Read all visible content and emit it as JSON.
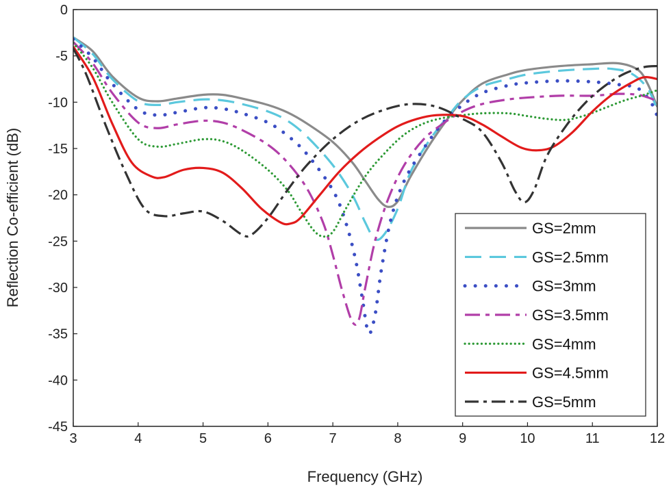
{
  "chart_data": {
    "type": "line",
    "title": "",
    "xlabel": "Frequency (GHz)",
    "ylabel": "Reflection Co-efficient (dB)",
    "xlim": [
      3,
      12
    ],
    "ylim": [
      -45,
      0
    ],
    "xticks": [
      3,
      4,
      5,
      6,
      7,
      8,
      9,
      10,
      11,
      12
    ],
    "yticks": [
      0,
      -5,
      -10,
      -15,
      -20,
      -25,
      -30,
      -35,
      -40,
      -45
    ],
    "grid": false,
    "legend_position": "bottom-right",
    "series": [
      {
        "name": "GS=2mm",
        "color": "#8a8a8a",
        "dash": "solid",
        "points": [
          [
            3,
            -3
          ],
          [
            3.3,
            -4.5
          ],
          [
            3.6,
            -7.2
          ],
          [
            4,
            -9.5
          ],
          [
            4.3,
            -9.9
          ],
          [
            4.6,
            -9.6
          ],
          [
            5,
            -9.2
          ],
          [
            5.3,
            -9.2
          ],
          [
            5.6,
            -9.6
          ],
          [
            6,
            -10.3
          ],
          [
            6.3,
            -11.1
          ],
          [
            6.6,
            -12.3
          ],
          [
            7,
            -14.3
          ],
          [
            7.3,
            -16.5
          ],
          [
            7.5,
            -18.5
          ],
          [
            7.7,
            -20.5
          ],
          [
            7.85,
            -21.3
          ],
          [
            8,
            -20.7
          ],
          [
            8.2,
            -18
          ],
          [
            8.5,
            -14.5
          ],
          [
            8.8,
            -11.5
          ],
          [
            9,
            -9.8
          ],
          [
            9.3,
            -8
          ],
          [
            9.7,
            -7
          ],
          [
            10,
            -6.5
          ],
          [
            10.5,
            -6.1
          ],
          [
            11,
            -5.9
          ],
          [
            11.4,
            -5.8
          ],
          [
            11.7,
            -6.5
          ],
          [
            11.85,
            -8
          ],
          [
            12,
            -10.5
          ]
        ]
      },
      {
        "name": "GS=2.5mm",
        "color": "#5bc8dd",
        "dash": "long-dash",
        "points": [
          [
            3,
            -3
          ],
          [
            3.3,
            -4.8
          ],
          [
            3.6,
            -7.5
          ],
          [
            4,
            -9.9
          ],
          [
            4.3,
            -10.3
          ],
          [
            4.6,
            -10
          ],
          [
            5,
            -9.7
          ],
          [
            5.3,
            -9.8
          ],
          [
            5.6,
            -10.2
          ],
          [
            6,
            -11
          ],
          [
            6.3,
            -12
          ],
          [
            6.6,
            -13.7
          ],
          [
            7,
            -16.8
          ],
          [
            7.3,
            -20
          ],
          [
            7.5,
            -23
          ],
          [
            7.65,
            -24.8
          ],
          [
            7.8,
            -24.2
          ],
          [
            8,
            -21.5
          ],
          [
            8.2,
            -17.5
          ],
          [
            8.5,
            -14
          ],
          [
            8.8,
            -11.3
          ],
          [
            9,
            -9.7
          ],
          [
            9.3,
            -8.3
          ],
          [
            9.7,
            -7.5
          ],
          [
            10,
            -7
          ],
          [
            10.5,
            -6.6
          ],
          [
            11,
            -6.4
          ],
          [
            11.3,
            -6.4
          ],
          [
            11.6,
            -6.9
          ],
          [
            11.85,
            -8.5
          ],
          [
            12,
            -10.8
          ]
        ]
      },
      {
        "name": "GS=3mm",
        "color": "#3b4ec4",
        "dash": "dotted",
        "points": [
          [
            3,
            -3.2
          ],
          [
            3.3,
            -5.2
          ],
          [
            3.6,
            -8
          ],
          [
            4,
            -10.8
          ],
          [
            4.3,
            -11.4
          ],
          [
            4.6,
            -11.1
          ],
          [
            5,
            -10.6
          ],
          [
            5.3,
            -10.7
          ],
          [
            5.6,
            -11.2
          ],
          [
            6,
            -12.2
          ],
          [
            6.3,
            -13.6
          ],
          [
            6.6,
            -15.6
          ],
          [
            7,
            -19.5
          ],
          [
            7.2,
            -23
          ],
          [
            7.35,
            -27
          ],
          [
            7.45,
            -31
          ],
          [
            7.55,
            -34.9
          ],
          [
            7.65,
            -33
          ],
          [
            7.75,
            -28
          ],
          [
            7.9,
            -22.5
          ],
          [
            8.1,
            -18.5
          ],
          [
            8.4,
            -15
          ],
          [
            8.7,
            -12.2
          ],
          [
            9,
            -10.3
          ],
          [
            9.3,
            -9
          ],
          [
            9.7,
            -8.2
          ],
          [
            10,
            -7.9
          ],
          [
            10.5,
            -7.7
          ],
          [
            11,
            -7.8
          ],
          [
            11.4,
            -8.1
          ],
          [
            11.7,
            -8.5
          ],
          [
            11.9,
            -10
          ],
          [
            12,
            -11.5
          ]
        ]
      },
      {
        "name": "GS=3.5mm",
        "color": "#b13ea8",
        "dash": "dash-dot",
        "points": [
          [
            3,
            -3.5
          ],
          [
            3.3,
            -5.8
          ],
          [
            3.6,
            -9
          ],
          [
            4,
            -12.2
          ],
          [
            4.3,
            -12.8
          ],
          [
            4.6,
            -12.4
          ],
          [
            5,
            -12
          ],
          [
            5.3,
            -12.2
          ],
          [
            5.6,
            -13
          ],
          [
            6,
            -14.6
          ],
          [
            6.3,
            -16.5
          ],
          [
            6.6,
            -19.3
          ],
          [
            6.85,
            -23
          ],
          [
            7,
            -26.5
          ],
          [
            7.15,
            -30.5
          ],
          [
            7.3,
            -33.7
          ],
          [
            7.4,
            -33.5
          ],
          [
            7.5,
            -30
          ],
          [
            7.65,
            -25
          ],
          [
            7.85,
            -20.5
          ],
          [
            8.1,
            -16.8
          ],
          [
            8.4,
            -14
          ],
          [
            8.7,
            -12.3
          ],
          [
            9,
            -11
          ],
          [
            9.3,
            -10.2
          ],
          [
            9.7,
            -9.7
          ],
          [
            10,
            -9.5
          ],
          [
            10.5,
            -9.3
          ],
          [
            11,
            -9.3
          ],
          [
            11.4,
            -9.1
          ],
          [
            11.7,
            -9.2
          ],
          [
            11.9,
            -9.6
          ],
          [
            12,
            -10
          ]
        ]
      },
      {
        "name": "GS=4mm",
        "color": "#2e9a36",
        "dash": "fine-dotted",
        "points": [
          [
            3,
            -3.6
          ],
          [
            3.3,
            -6.3
          ],
          [
            3.6,
            -10
          ],
          [
            4,
            -14
          ],
          [
            4.3,
            -14.8
          ],
          [
            4.6,
            -14.5
          ],
          [
            5,
            -14
          ],
          [
            5.3,
            -14.2
          ],
          [
            5.6,
            -15.2
          ],
          [
            6,
            -17.3
          ],
          [
            6.3,
            -19.5
          ],
          [
            6.5,
            -21.7
          ],
          [
            6.7,
            -23.8
          ],
          [
            6.85,
            -24.5
          ],
          [
            7,
            -24
          ],
          [
            7.2,
            -21.5
          ],
          [
            7.5,
            -18
          ],
          [
            7.8,
            -15.5
          ],
          [
            8.1,
            -13.5
          ],
          [
            8.4,
            -12.3
          ],
          [
            8.7,
            -11.7
          ],
          [
            9,
            -11.4
          ],
          [
            9.3,
            -11.2
          ],
          [
            9.7,
            -11.2
          ],
          [
            10,
            -11.5
          ],
          [
            10.3,
            -11.8
          ],
          [
            10.6,
            -11.9
          ],
          [
            10.9,
            -11.4
          ],
          [
            11.2,
            -10.6
          ],
          [
            11.5,
            -9.8
          ],
          [
            11.8,
            -9.2
          ],
          [
            12,
            -8.7
          ]
        ]
      },
      {
        "name": "GS=4.5mm",
        "color": "#e21b1b",
        "dash": "solid",
        "points": [
          [
            3,
            -4
          ],
          [
            3.3,
            -7.3
          ],
          [
            3.6,
            -12.3
          ],
          [
            3.9,
            -16.5
          ],
          [
            4.2,
            -18
          ],
          [
            4.4,
            -18.1
          ],
          [
            4.7,
            -17.3
          ],
          [
            5,
            -17.1
          ],
          [
            5.3,
            -17.6
          ],
          [
            5.6,
            -19.3
          ],
          [
            5.9,
            -21.5
          ],
          [
            6.2,
            -23
          ],
          [
            6.35,
            -23.1
          ],
          [
            6.5,
            -22.5
          ],
          [
            6.8,
            -20
          ],
          [
            7.1,
            -17.5
          ],
          [
            7.4,
            -15.5
          ],
          [
            7.7,
            -13.9
          ],
          [
            8,
            -12.6
          ],
          [
            8.3,
            -11.8
          ],
          [
            8.6,
            -11.4
          ],
          [
            9,
            -11.5
          ],
          [
            9.3,
            -12.4
          ],
          [
            9.6,
            -13.7
          ],
          [
            9.9,
            -14.9
          ],
          [
            10.15,
            -15.2
          ],
          [
            10.4,
            -14.8
          ],
          [
            10.7,
            -13.2
          ],
          [
            11,
            -11
          ],
          [
            11.3,
            -9.2
          ],
          [
            11.6,
            -7.9
          ],
          [
            11.8,
            -7.3
          ],
          [
            12,
            -7.5
          ]
        ]
      },
      {
        "name": "GS=5mm",
        "color": "#333333",
        "dash": "long-dash-dot",
        "points": [
          [
            3,
            -4.2
          ],
          [
            3.2,
            -7
          ],
          [
            3.5,
            -12.5
          ],
          [
            3.8,
            -17.5
          ],
          [
            4.1,
            -21.5
          ],
          [
            4.4,
            -22.3
          ],
          [
            4.7,
            -22
          ],
          [
            5,
            -21.8
          ],
          [
            5.3,
            -22.8
          ],
          [
            5.6,
            -24.3
          ],
          [
            5.75,
            -24.3
          ],
          [
            6,
            -22.5
          ],
          [
            6.3,
            -19.5
          ],
          [
            6.6,
            -16.8
          ],
          [
            7,
            -14
          ],
          [
            7.4,
            -12
          ],
          [
            7.8,
            -10.8
          ],
          [
            8.2,
            -10.2
          ],
          [
            8.6,
            -10.5
          ],
          [
            9,
            -11.8
          ],
          [
            9.3,
            -13.2
          ],
          [
            9.6,
            -16.5
          ],
          [
            9.8,
            -19.5
          ],
          [
            9.95,
            -20.8
          ],
          [
            10.1,
            -19.5
          ],
          [
            10.3,
            -15.8
          ],
          [
            10.6,
            -12.5
          ],
          [
            10.9,
            -10
          ],
          [
            11.2,
            -8.2
          ],
          [
            11.5,
            -6.9
          ],
          [
            11.8,
            -6.2
          ],
          [
            12,
            -6.1
          ]
        ]
      }
    ]
  }
}
